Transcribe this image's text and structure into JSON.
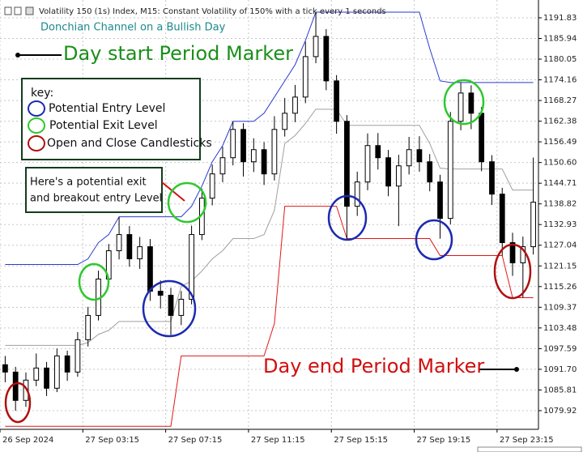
{
  "chart_data": {
    "type": "candlestick",
    "title": "Volatility 150 (1s) Index, M15:  Constant Volatility of 150% with a tick every 1 seconds",
    "subtitle": "Donchian Channel on a Bullish Day",
    "xlim": [
      0,
      104
    ],
    "xticks": [
      {
        "value": 0,
        "label": "26 Sep 2024"
      },
      {
        "value": 16,
        "label": "27 Sep 03:15"
      },
      {
        "value": 32,
        "label": "27 Sep 07:15"
      },
      {
        "value": 48,
        "label": "27 Sep 11:15"
      },
      {
        "value": 64,
        "label": "27 Sep 15:15"
      },
      {
        "value": 80,
        "label": "27 Sep 19:15"
      },
      {
        "value": 96,
        "label": "27 Sep 23:15"
      }
    ],
    "ylim": [
      1074.6,
      1196.9
    ],
    "yticks": [
      1191.83,
      1185.94,
      1180.05,
      1174.16,
      1168.27,
      1162.38,
      1156.49,
      {
        "value": 1150.6,
        "label": "1150.60"
      },
      1144.71,
      1138.82,
      1132.93,
      1127.04,
      1121.15,
      1115.26,
      1109.37,
      1103.48,
      1097.59,
      {
        "value": 1091.7,
        "label": "1091.70"
      },
      1085.81,
      1079.92
    ],
    "grid": true,
    "x": [
      1,
      3,
      5,
      7,
      9,
      11,
      13,
      15,
      17,
      19,
      21,
      23,
      25,
      27,
      29,
      31,
      33,
      35,
      37,
      39,
      41,
      43,
      45,
      47,
      49,
      51,
      53,
      55,
      57,
      59,
      61,
      63,
      65,
      67,
      69,
      71,
      73,
      75,
      77,
      79,
      81,
      83,
      85,
      87,
      89,
      91,
      93,
      95,
      97,
      99,
      101,
      103
    ],
    "candles": {
      "open": [
        1093.0,
        1090.91,
        1082.84,
        1088.61,
        1092.06,
        1086.3,
        1095.52,
        1090.91,
        1100.13,
        1107.04,
        1117.41,
        1125.47,
        1130.08,
        1123.17,
        1126.62,
        1113.95,
        1112.8,
        1107.04,
        1111.65,
        1130.08,
        1140.45,
        1147.36,
        1151.97,
        1160.03,
        1150.82,
        1154.27,
        1147.36,
        1160.03,
        1164.64,
        1169.25,
        1180.77,
        1186.53,
        1173.86,
        1162.34,
        1138.14,
        1145.06,
        1155.43,
        1151.97,
        1143.9,
        1149.66,
        1154.27,
        1150.82,
        1145.06,
        1134.69,
        1162.34,
        1170.4,
        1164.64,
        1150.82,
        1141.6,
        1127.78,
        1122.02,
        1126.62
      ],
      "high": [
        1095.5,
        1092.4,
        1090.8,
        1096.2,
        1093.8,
        1097.6,
        1097.0,
        1102.3,
        1109.5,
        1119.8,
        1127.4,
        1135.1,
        1132.5,
        1129.4,
        1128.8,
        1117.0,
        1114.9,
        1114.0,
        1132.6,
        1143.2,
        1150.0,
        1155.1,
        1162.3,
        1161.8,
        1157.5,
        1156.4,
        1163.8,
        1169.0,
        1172.7,
        1185.0,
        1193.4,
        1188.6,
        1175.5,
        1164.1,
        1148.0,
        1158.9,
        1159.0,
        1154.2,
        1152.8,
        1157.9,
        1158.1,
        1153.0,
        1147.1,
        1165.0,
        1173.4,
        1172.6,
        1166.4,
        1152.7,
        1143.4,
        1130.6,
        1129.5,
        1152.0
      ],
      "low": [
        1088.0,
        1079.9,
        1081.0,
        1086.9,
        1084.1,
        1085.2,
        1088.4,
        1089.6,
        1098.2,
        1105.6,
        1115.8,
        1123.0,
        1120.9,
        1120.3,
        1111.2,
        1109.0,
        1101.5,
        1104.3,
        1110.2,
        1128.5,
        1138.4,
        1145.0,
        1149.8,
        1146.6,
        1147.9,
        1144.2,
        1145.5,
        1158.0,
        1162.1,
        1167.5,
        1178.9,
        1171.2,
        1158.8,
        1128.9,
        1135.4,
        1142.7,
        1148.6,
        1141.0,
        1132.5,
        1147.2,
        1148.0,
        1142.4,
        1128.9,
        1133.0,
        1159.8,
        1160.1,
        1148.1,
        1138.5,
        1124.1,
        1118.3,
        1112.1,
        1124.4
      ],
      "close": [
        1090.91,
        1082.84,
        1088.61,
        1092.06,
        1086.3,
        1095.52,
        1090.91,
        1100.13,
        1107.04,
        1117.41,
        1125.47,
        1130.08,
        1123.17,
        1126.62,
        1113.95,
        1112.8,
        1107.04,
        1111.65,
        1130.08,
        1140.45,
        1147.36,
        1151.97,
        1160.03,
        1150.82,
        1154.27,
        1147.36,
        1160.03,
        1164.64,
        1169.25,
        1180.77,
        1186.53,
        1173.86,
        1162.34,
        1138.14,
        1145.06,
        1155.43,
        1151.97,
        1143.9,
        1149.66,
        1154.27,
        1150.82,
        1145.06,
        1134.69,
        1162.34,
        1170.4,
        1164.64,
        1150.82,
        1141.6,
        1127.78,
        1122.02,
        1126.62,
        1139.3
      ]
    },
    "series": [
      {
        "color": "#2a3ad0",
        "values": [
          1121.55,
          1121.55,
          1121.55,
          1121.55,
          1121.55,
          1121.55,
          1121.55,
          1121.55,
          1123.17,
          1127.78,
          1130.08,
          1135.15,
          1135.15,
          1135.15,
          1135.15,
          1135.15,
          1135.15,
          1135.15,
          1138.14,
          1143.9,
          1150.82,
          1155.43,
          1162.34,
          1162.34,
          1162.34,
          1164.64,
          1169.25,
          1173.86,
          1178.47,
          1185.38,
          1193.44,
          1193.44,
          1193.44,
          1193.44,
          1193.44,
          1193.44,
          1193.44,
          1193.44,
          1193.44,
          1193.44,
          1193.44,
          1183.08,
          1173.86,
          1173.4,
          1173.4,
          1173.4,
          1173.4,
          1173.4,
          1173.4,
          1173.4,
          1173.4,
          1173.4
        ]
      },
      {
        "color": "#a0a0a0",
        "values": [
          1098.51,
          1098.51,
          1098.51,
          1098.51,
          1098.51,
          1098.51,
          1098.51,
          1098.51,
          1099.32,
          1101.63,
          1102.78,
          1105.31,
          1105.31,
          1105.31,
          1105.31,
          1105.31,
          1105.31,
          1115.34,
          1116.83,
          1119.71,
          1123.17,
          1125.48,
          1128.93,
          1128.93,
          1128.93,
          1130.08,
          1136.99,
          1156.0,
          1158.31,
          1161.76,
          1165.79,
          1165.79,
          1165.79,
          1161.19,
          1161.19,
          1161.19,
          1161.19,
          1161.19,
          1161.19,
          1161.19,
          1161.19,
          1156.01,
          1148.98,
          1148.75,
          1148.75,
          1148.75,
          1148.75,
          1148.75,
          1148.75,
          1142.76,
          1142.76,
          1142.76
        ]
      },
      {
        "color": "#e01818",
        "values": [
          1075.47,
          1075.47,
          1075.47,
          1075.47,
          1075.47,
          1075.47,
          1075.47,
          1075.47,
          1075.47,
          1075.47,
          1075.47,
          1075.47,
          1075.47,
          1075.47,
          1075.47,
          1075.47,
          1075.47,
          1095.52,
          1095.52,
          1095.52,
          1095.52,
          1095.52,
          1095.52,
          1095.52,
          1095.52,
          1095.52,
          1104.73,
          1138.14,
          1138.14,
          1138.14,
          1138.14,
          1138.14,
          1138.14,
          1128.93,
          1128.93,
          1128.93,
          1128.93,
          1128.93,
          1128.93,
          1128.93,
          1128.93,
          1128.93,
          1124.09,
          1124.09,
          1124.09,
          1124.09,
          1124.09,
          1124.09,
          1124.09,
          1112.11,
          1112.11,
          1112.11
        ]
      }
    ],
    "annotations": {
      "start_marker": "Day start Period Marker",
      "end_marker": "Day end Period Marker",
      "key_title": "key:",
      "key_items": [
        "Potential Entry Level",
        "Potential Exit Level",
        "Open and Close Candlesticks"
      ],
      "callout": [
        "Here's a potential exit",
        "and breakout entry Level"
      ]
    }
  }
}
